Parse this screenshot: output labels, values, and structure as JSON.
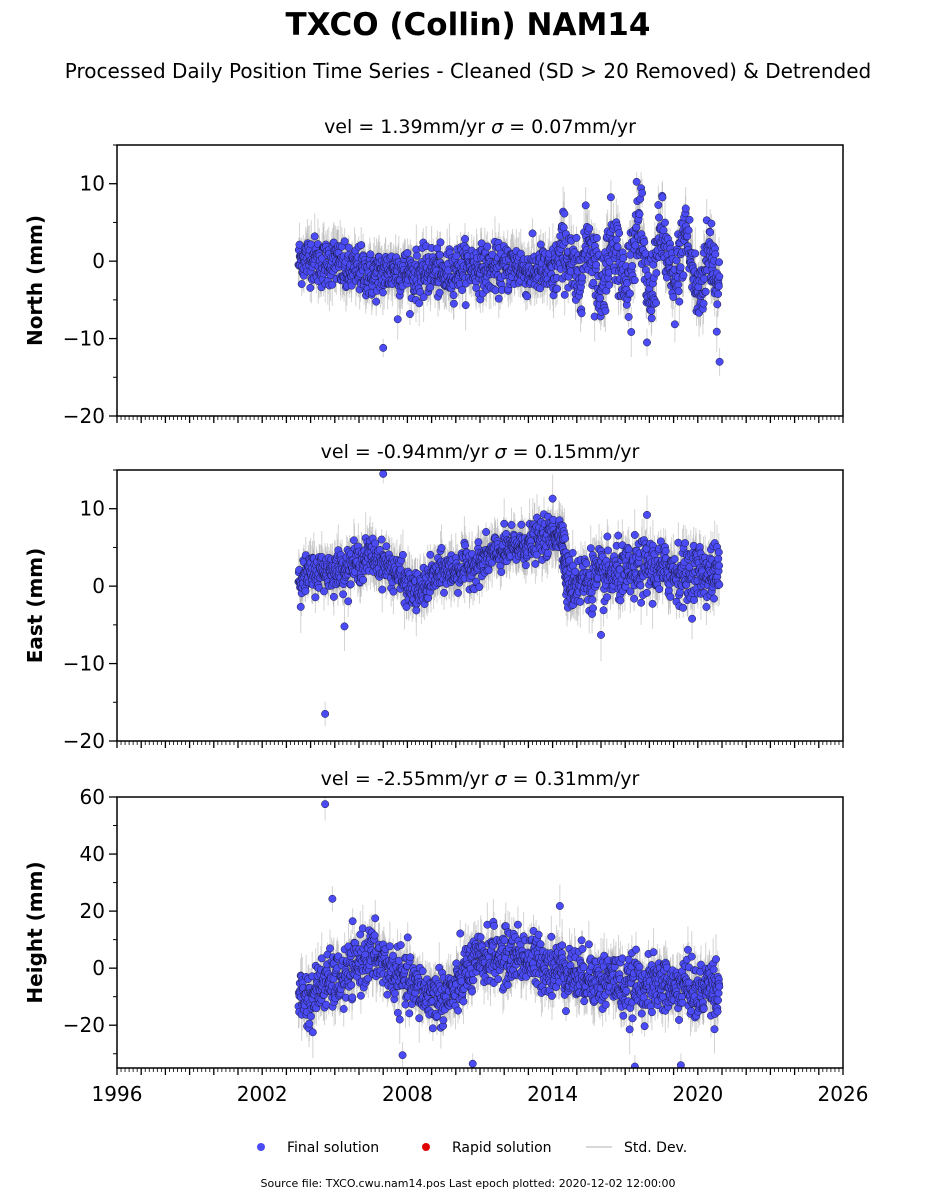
{
  "figure": {
    "title": "TXCO (Collin) NAM14",
    "subtitle": "Processed Daily Position Time Series - Cleaned (SD > 20 Removed) & Detrended",
    "footer": "Source file: TXCO.cwu.nam14.pos  Last epoch plotted: 2020-12-02 12:00:00"
  },
  "legend": {
    "placement": "bottom-center",
    "items": [
      {
        "label": "Final solution",
        "color": "#4b4bf5",
        "kind": "dot"
      },
      {
        "label": "Rapid solution",
        "color": "#e00000",
        "kind": "dot"
      },
      {
        "label": "Std. Dev.",
        "color": "#cccccc",
        "kind": "line"
      }
    ]
  },
  "colors": {
    "final": "#4b4bf5",
    "rapid": "#e00000",
    "stddev": "#b0b0b0"
  },
  "chart_data": [
    {
      "type": "scatter",
      "title_vel": "vel = 1.39mm/yr",
      "title_sigma": " = 0.07mm/yr",
      "ylabel": "North (mm)",
      "xlim": [
        1996,
        2026
      ],
      "ylim": [
        -20,
        15
      ],
      "yticks": [
        -20,
        -10,
        0,
        10
      ],
      "xticks": [
        1996,
        2002,
        2008,
        2014,
        2020,
        2026
      ],
      "grid": false,
      "series": [
        {
          "name": "Final solution",
          "x": [
            2003.5,
            2004.0,
            2004.5,
            2005.0,
            2005.5,
            2006.0,
            2006.5,
            2007.0,
            2007.5,
            2008.0,
            2008.5,
            2009.0,
            2009.5,
            2010.0,
            2010.5,
            2011.0,
            2011.5,
            2012.0,
            2012.5,
            2013.0,
            2013.5,
            2014.0,
            2014.5,
            2015.0,
            2015.5,
            2016.0,
            2016.5,
            2017.0,
            2017.5,
            2018.0,
            2018.5,
            2019.0,
            2019.5,
            2020.0,
            2020.5,
            2020.9
          ],
          "y": [
            0,
            0.5,
            -0.5,
            0.2,
            -1.5,
            -1,
            -2,
            -1.5,
            -1,
            -1.5,
            -2,
            -1,
            -2,
            -1,
            -0.5,
            -1,
            -1,
            -1,
            -0.5,
            -1.5,
            -1,
            -2,
            2,
            -3,
            3,
            -4,
            4,
            -4,
            5,
            -5,
            4,
            -4,
            4,
            -5,
            2,
            -4
          ],
          "spread": [
            2.5,
            2.5,
            2.5,
            2.5,
            2.5,
            2.5,
            2.5,
            2.5,
            2.5,
            2.5,
            2.5,
            2.5,
            2.5,
            2.5,
            2.5,
            2.5,
            2.5,
            2.5,
            2.5,
            2.5,
            2.5,
            3,
            4,
            4,
            4,
            4,
            4,
            4,
            4,
            4,
            4,
            4,
            4,
            4,
            4,
            4
          ],
          "outliers": [
            [
              2007.0,
              -11.2
            ],
            [
              2007.6,
              -7.5
            ],
            [
              2017.9,
              -10.5
            ],
            [
              2020.9,
              -13
            ],
            [
              2017.7,
              8.8
            ],
            [
              2019.5,
              6.8
            ]
          ]
        }
      ]
    },
    {
      "type": "scatter",
      "title_vel": "vel = -0.94mm/yr",
      "title_sigma": " = 0.15mm/yr",
      "ylabel": "East (mm)",
      "xlim": [
        1996,
        2026
      ],
      "ylim": [
        -20,
        15
      ],
      "yticks": [
        -20,
        -10,
        0,
        10
      ],
      "xticks": [
        1996,
        2002,
        2008,
        2014,
        2020,
        2026
      ],
      "grid": false,
      "series": [
        {
          "name": "Final solution",
          "x": [
            2003.5,
            2004.0,
            2004.5,
            2005.0,
            2005.5,
            2006.0,
            2006.5,
            2007.0,
            2007.5,
            2008.0,
            2008.5,
            2009.0,
            2009.5,
            2010.0,
            2010.5,
            2011.0,
            2011.5,
            2012.0,
            2012.5,
            2013.0,
            2013.5,
            2014.0,
            2014.4,
            2014.6,
            2015.0,
            2015.5,
            2016.0,
            2016.5,
            2017.0,
            2017.5,
            2018.0,
            2018.5,
            2019.0,
            2019.5,
            2020.0,
            2020.5,
            2020.9
          ],
          "y": [
            1,
            1.5,
            2,
            2,
            2.5,
            3,
            4,
            3,
            2,
            0,
            -1,
            1,
            2,
            2,
            2.5,
            3,
            4,
            4.5,
            5,
            5.5,
            6,
            6.5,
            7,
            0.5,
            0.5,
            1,
            1,
            1.5,
            1.5,
            2,
            2.5,
            2,
            2,
            1.5,
            2,
            1.5,
            2
          ],
          "spread": [
            2,
            2,
            2,
            2,
            2,
            2,
            2,
            2,
            2,
            2,
            2,
            2,
            2,
            2,
            2,
            2,
            2,
            2,
            2,
            2,
            2,
            2,
            2,
            3,
            3,
            3,
            3,
            3,
            3,
            3,
            3,
            3,
            3,
            3,
            3,
            3,
            3
          ],
          "outliers": [
            [
              2004.6,
              -16.5
            ],
            [
              2007.0,
              14.5
            ],
            [
              2005.4,
              -5.2
            ],
            [
              2014.0,
              11.3
            ],
            [
              2017.9,
              9.2
            ],
            [
              2016.0,
              -6.3
            ]
          ]
        }
      ]
    },
    {
      "type": "scatter",
      "title_vel": "vel = -2.55mm/yr",
      "title_sigma": " = 0.31mm/yr",
      "ylabel": "Height (mm)",
      "xlim": [
        1996,
        2026
      ],
      "ylim": [
        -35,
        60
      ],
      "yticks": [
        -20,
        0,
        20,
        40,
        60
      ],
      "xticks": [
        1996,
        2002,
        2008,
        2014,
        2020,
        2026
      ],
      "xticklabels": [
        "1996",
        "2002",
        "2008",
        "2014",
        "2020",
        "2026"
      ],
      "grid": false,
      "series": [
        {
          "name": "Final solution",
          "x": [
            2003.5,
            2004.0,
            2004.5,
            2005.0,
            2005.5,
            2006.0,
            2006.5,
            2007.0,
            2007.5,
            2008.0,
            2008.5,
            2009.0,
            2009.5,
            2010.0,
            2010.5,
            2011.0,
            2011.5,
            2012.0,
            2012.5,
            2013.0,
            2013.5,
            2014.0,
            2014.5,
            2015.0,
            2015.5,
            2016.0,
            2016.5,
            2017.0,
            2017.5,
            2018.0,
            2018.5,
            2019.0,
            2019.5,
            2020.0,
            2020.5,
            2020.9
          ],
          "y": [
            -8,
            -12,
            -5,
            -5,
            -3,
            2,
            5,
            2,
            -3,
            -5,
            -8,
            -10,
            -10,
            -8,
            0,
            2,
            5,
            3,
            5,
            3,
            2,
            0,
            0,
            -3,
            -2,
            -5,
            -3,
            -8,
            -5,
            -7,
            -5,
            -8,
            -5,
            -10,
            -5,
            -8
          ],
          "spread": [
            8,
            8,
            8,
            8,
            8,
            8,
            8,
            8,
            8,
            8,
            8,
            8,
            8,
            8,
            8,
            8,
            8,
            8,
            8,
            8,
            8,
            8,
            8,
            8,
            8,
            8,
            8,
            8,
            8,
            8,
            8,
            8,
            8,
            8,
            8,
            8
          ],
          "outliers": [
            [
              2004.6,
              57.5
            ],
            [
              2004.9,
              24.3
            ],
            [
              2007.8,
              -30.5
            ],
            [
              2010.7,
              -33.5
            ],
            [
              2017.4,
              -34.5
            ],
            [
              2014.3,
              21.8
            ],
            [
              2019.3,
              -34
            ]
          ]
        }
      ]
    }
  ]
}
